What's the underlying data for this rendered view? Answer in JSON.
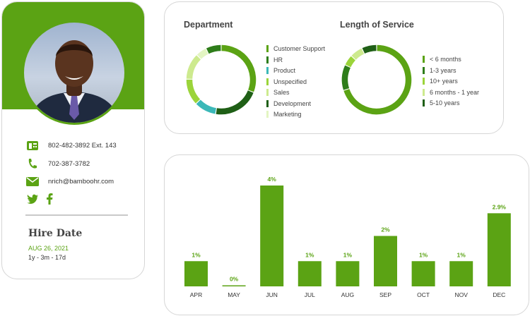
{
  "profile": {
    "phone_work": "802-482-3892 Ext. 143",
    "phone_mobile": "702-387-3782",
    "email": "nrich@bamboohr.com",
    "hire_date_title": "Hire Date",
    "hire_date": "AUG 26, 2021",
    "tenure": "1y - 3m - 17d",
    "icons": [
      "phone-desk-icon",
      "phone-icon",
      "email-icon",
      "twitter-icon",
      "facebook-icon"
    ],
    "accent_color": "#5ba314"
  },
  "department": {
    "title": "Department",
    "legend": [
      {
        "label": "Customer Support",
        "color": "#5ba314"
      },
      {
        "label": "HR",
        "color": "#2e7d1a"
      },
      {
        "label": "Product",
        "color": "#3bb8b8"
      },
      {
        "label": "Unspecified",
        "color": "#9bd43a"
      },
      {
        "label": "Sales",
        "color": "#cdea8e"
      },
      {
        "label": "Development",
        "color": "#1f5f16"
      },
      {
        "label": "Marketing",
        "color": "#e3f5c2"
      }
    ]
  },
  "service": {
    "title": "Length of Service",
    "legend": [
      {
        "label": "< 6 months",
        "color": "#5ba314"
      },
      {
        "label": "1-3 years",
        "color": "#2e7d1a"
      },
      {
        "label": "10+ years",
        "color": "#9bd43a"
      },
      {
        "label": "6 months - 1 year",
        "color": "#cdea8e"
      },
      {
        "label": "5-10 years",
        "color": "#1f5f16"
      }
    ]
  },
  "chart_data": [
    {
      "type": "pie",
      "title": "Department",
      "categories": [
        "Customer Support",
        "Development",
        "Product",
        "Unspecified",
        "Sales",
        "Marketing",
        "HR"
      ],
      "values": [
        30,
        21,
        10,
        12,
        12,
        5,
        7
      ],
      "colors": [
        "#5ba314",
        "#1f5f16",
        "#3bb8b8",
        "#9bd43a",
        "#cdea8e",
        "#e3f5c2",
        "#2e7d1a"
      ]
    },
    {
      "type": "pie",
      "title": "Length of Service",
      "categories": [
        "< 6 months",
        "1-3 years",
        "10+ years",
        "6 months - 1 year",
        "5-10 years"
      ],
      "values": [
        70,
        12,
        5,
        6,
        7
      ],
      "colors": [
        "#5ba314",
        "#2e7d1a",
        "#9bd43a",
        "#cdea8e",
        "#1f5f16"
      ]
    },
    {
      "type": "bar",
      "categories": [
        "APR",
        "MAY",
        "JUN",
        "JUL",
        "AUG",
        "SEP",
        "OCT",
        "NOV",
        "DEC"
      ],
      "values": [
        1,
        0,
        4,
        1,
        1,
        2,
        1,
        1,
        2.9
      ],
      "labels": [
        "1%",
        "0%",
        "4%",
        "1%",
        "1%",
        "2%",
        "1%",
        "1%",
        "2.9%"
      ],
      "ylim": [
        0,
        4
      ],
      "bar_color": "#5ba314",
      "label_color": "#5ba314"
    }
  ]
}
